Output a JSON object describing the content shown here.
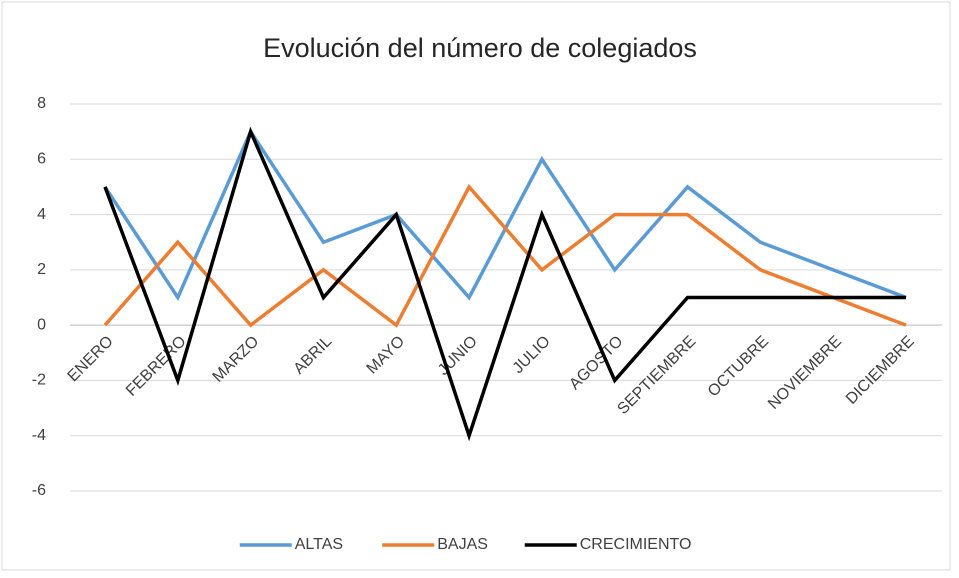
{
  "chart_data": {
    "type": "line",
    "title": "Evolución del número de colegiados",
    "categories": [
      "ENERO",
      "FEBRERO",
      "MARZO",
      "ABRIL",
      "MAYO",
      "JUNIO",
      "JULIO",
      "AGOSTO",
      "SEPTIEMBRE",
      "OCTUBRE",
      "NOVIEMBRE",
      "DICIEMBRE"
    ],
    "series": [
      {
        "name": "ALTAS",
        "color": "#5b9bd5",
        "values": [
          5,
          1,
          7,
          3,
          4,
          1,
          6,
          2,
          5,
          3,
          2,
          1
        ]
      },
      {
        "name": "BAJAS",
        "color": "#ed7d31",
        "values": [
          0,
          3,
          0,
          2,
          0,
          5,
          2,
          4,
          4,
          2,
          1,
          0
        ]
      },
      {
        "name": "CRECIMIENTO",
        "color": "#000000",
        "values": [
          5,
          -2,
          7,
          1,
          4,
          -4,
          4,
          -2,
          1,
          1,
          1,
          1
        ]
      }
    ],
    "ylim": [
      -6,
      8
    ],
    "yticks": [
      -6,
      -4,
      -2,
      0,
      2,
      4,
      6,
      8
    ],
    "grid": true,
    "legend": "bottom"
  }
}
